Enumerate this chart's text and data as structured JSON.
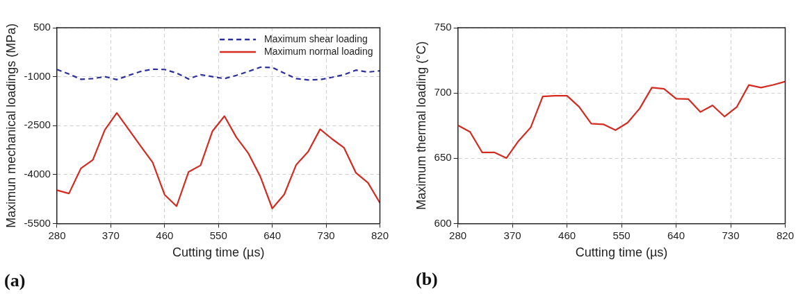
{
  "chart_data": [
    {
      "type": "line",
      "xlabel": "Cutting time (µs)",
      "ylabel": "Maximun mechanical loadings (MPa)",
      "x": [
        280,
        300,
        320,
        340,
        360,
        380,
        400,
        420,
        440,
        460,
        480,
        500,
        520,
        540,
        560,
        580,
        600,
        620,
        640,
        660,
        680,
        700,
        720,
        740,
        760,
        780,
        800,
        820
      ],
      "series": [
        {
          "name": "Maximum shear loading",
          "color": "#2b2f9e",
          "line_style": "dashed",
          "values": [
            -780,
            -920,
            -1080,
            -1060,
            -1000,
            -1090,
            -960,
            -840,
            -770,
            -780,
            -890,
            -1070,
            -940,
            -1000,
            -1060,
            -960,
            -840,
            -710,
            -720,
            -890,
            -1060,
            -1100,
            -1090,
            -1020,
            -940,
            -800,
            -860,
            -820
          ]
        },
        {
          "name": "Maximum normal loading",
          "color": "#d42a20",
          "line_style": "solid",
          "values": [
            -4480,
            -4580,
            -3810,
            -3550,
            -2630,
            -2110,
            -2620,
            -3130,
            -3630,
            -4620,
            -4970,
            -3920,
            -3720,
            -2670,
            -2210,
            -2860,
            -3350,
            -4060,
            -5040,
            -4610,
            -3700,
            -3300,
            -2610,
            -2910,
            -3180,
            -3950,
            -4250,
            -4870
          ]
        }
      ],
      "xlim": [
        280,
        820
      ],
      "xticks": [
        280,
        370,
        460,
        550,
        640,
        730,
        820
      ],
      "ylim": [
        -5500,
        500
      ],
      "yticks": [
        -5500,
        -4000,
        -2500,
        -1000,
        500
      ],
      "grid": true,
      "legend": "top right",
      "marker": "none",
      "annotations": [
        "(a)"
      ]
    },
    {
      "type": "line",
      "xlabel": "Cutting time (µs)",
      "ylabel": "Maximum thermal loading (°C)",
      "x": [
        280,
        300,
        320,
        340,
        360,
        380,
        400,
        420,
        440,
        460,
        480,
        500,
        520,
        540,
        560,
        580,
        600,
        620,
        640,
        660,
        680,
        700,
        720,
        740,
        760,
        780,
        800,
        820
      ],
      "series": [
        {
          "color": "#d42a20",
          "line_style": "solid",
          "values": [
            675.2,
            670.2,
            654.5,
            654.5,
            650.1,
            663.2,
            673.5,
            697.4,
            697.9,
            697.9,
            689.4,
            676.5,
            676.0,
            671.5,
            677.2,
            688.2,
            704.1,
            703.2,
            695.6,
            695.4,
            685.4,
            690.5,
            681.9,
            689.2,
            706.1,
            704.1,
            706.2,
            708.8
          ]
        }
      ],
      "xlim": [
        280,
        820
      ],
      "xticks": [
        280,
        370,
        460,
        550,
        640,
        730,
        820
      ],
      "ylim": [
        600,
        750
      ],
      "yticks": [
        600,
        650,
        700,
        750
      ],
      "grid": true,
      "legend": false,
      "marker": "none",
      "annotations": [
        "(b)"
      ]
    }
  ]
}
